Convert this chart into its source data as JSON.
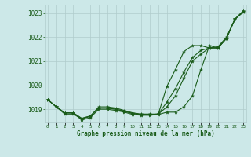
{
  "x": [
    0,
    1,
    2,
    3,
    4,
    5,
    6,
    7,
    8,
    9,
    10,
    11,
    12,
    13,
    14,
    15,
    16,
    17,
    18,
    19,
    20,
    21,
    22,
    23
  ],
  "line1": [
    1019.4,
    1019.1,
    1018.85,
    1018.85,
    1018.62,
    1018.72,
    1019.05,
    1019.05,
    1019.0,
    1018.92,
    1018.82,
    1018.78,
    1018.78,
    1018.8,
    1019.3,
    1019.85,
    1020.55,
    1021.15,
    1021.45,
    1021.55,
    1021.55,
    1021.95,
    1022.75,
    1023.05
  ],
  "line2": [
    1019.4,
    1019.1,
    1018.85,
    1018.85,
    1018.62,
    1018.72,
    1019.05,
    1019.05,
    1019.0,
    1018.92,
    1018.82,
    1018.78,
    1018.78,
    1018.8,
    1019.95,
    1020.65,
    1021.4,
    1021.65,
    1021.65,
    1021.55,
    1021.55,
    1021.95,
    1022.75,
    1023.05
  ],
  "line3": [
    1019.4,
    1019.1,
    1018.8,
    1018.8,
    1018.6,
    1018.7,
    1019.1,
    1019.1,
    1019.05,
    1018.95,
    1018.85,
    1018.8,
    1018.8,
    1018.8,
    1019.1,
    1019.55,
    1020.3,
    1021.0,
    1021.3,
    1021.55,
    1021.6,
    1022.0,
    1022.75,
    1023.1
  ],
  "line4": [
    1019.4,
    1019.1,
    1018.85,
    1018.85,
    1018.55,
    1018.65,
    1019.0,
    1019.0,
    1018.95,
    1018.88,
    1018.78,
    1018.75,
    1018.75,
    1018.78,
    1018.88,
    1018.88,
    1019.1,
    1019.55,
    1020.65,
    1021.65,
    1021.55,
    1021.95,
    1022.75,
    1023.1
  ],
  "bg_color": "#cce8e8",
  "grid_color": "#b0cccc",
  "line_color": "#1a5c1a",
  "marker": "*",
  "markersize": 3.0,
  "linewidth": 0.8,
  "ylim": [
    1018.45,
    1023.35
  ],
  "yticks": [
    1019,
    1020,
    1021,
    1022,
    1023
  ],
  "xlim": [
    -0.3,
    23.3
  ],
  "xlabel": "Graphe pression niveau de la mer (hPa)",
  "font_color": "#1a5c1a"
}
